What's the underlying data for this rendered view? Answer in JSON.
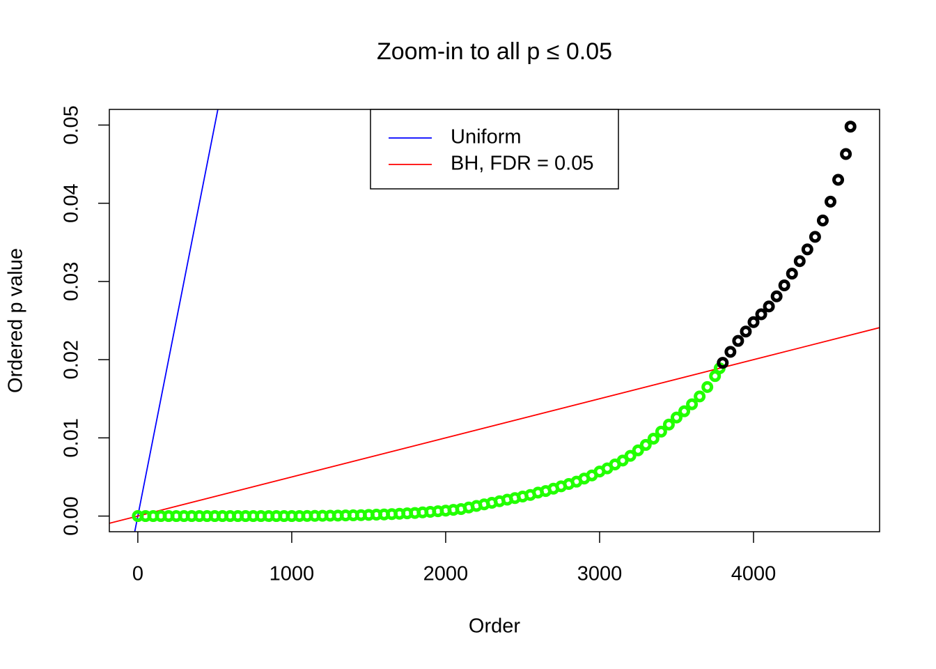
{
  "chart_data": {
    "type": "scatter",
    "title": "Zoom-in to all p ≤ 0.05",
    "x_label": "Order",
    "y_label": "Ordered p value",
    "xlim": [
      -185,
      4819
    ],
    "ylim": [
      -0.002,
      0.052
    ],
    "xticks": [
      0,
      1000,
      2000,
      3000,
      4000
    ],
    "yticks": [
      {
        "value": 0,
        "label": "0.00"
      },
      0.01,
      0.02,
      0.03,
      0.04,
      0.05
    ],
    "series": [
      {
        "color": "#22ff00",
        "x": [
          0,
          50,
          100,
          150,
          200,
          250,
          300,
          350,
          400,
          450,
          500,
          550,
          600,
          650,
          700,
          750,
          800,
          850,
          900,
          950,
          1000,
          1050,
          1100,
          1150,
          1200,
          1250,
          1300,
          1350,
          1400,
          1450,
          1500,
          1550,
          1600,
          1650,
          1700,
          1750,
          1800,
          1850,
          1900,
          1950,
          2000,
          2050,
          2100,
          2150,
          2200,
          2250,
          2300,
          2350,
          2400,
          2450,
          2500,
          2550,
          2600,
          2650,
          2700,
          2750,
          2800,
          2850,
          2900,
          2950,
          3000,
          3050,
          3100,
          3150,
          3200,
          3250,
          3300,
          3350,
          3400,
          3450,
          3500,
          3550,
          3600,
          3650,
          3700,
          3750,
          3780
        ],
        "values": [
          0,
          0,
          0,
          0,
          0,
          0,
          0,
          0,
          0,
          0,
          0,
          0,
          0,
          0,
          0,
          0,
          0,
          0,
          0,
          0,
          0,
          1e-05,
          2e-05,
          3e-05,
          4e-05,
          5e-05,
          6e-05,
          8e-05,
          0.0001,
          0.00012,
          0.00015,
          0.00018,
          0.00021,
          0.00025,
          0.0003,
          0.00035,
          0.0004,
          0.00047,
          0.00054,
          0.00062,
          0.0007,
          0.0008,
          0.0009,
          0.0011,
          0.0013,
          0.0015,
          0.0017,
          0.0019,
          0.0021,
          0.0023,
          0.0025,
          0.0027,
          0.003,
          0.0032,
          0.0035,
          0.0038,
          0.0041,
          0.0044,
          0.0048,
          0.0052,
          0.0057,
          0.0061,
          0.0066,
          0.0071,
          0.0077,
          0.0084,
          0.0091,
          0.0099,
          0.0108,
          0.0117,
          0.0126,
          0.0134,
          0.0143,
          0.0153,
          0.0165,
          0.0179,
          0.0189
        ]
      },
      {
        "color": "#000000",
        "x": [
          3800,
          3850,
          3900,
          3950,
          4000,
          4050,
          4100,
          4150,
          4200,
          4250,
          4300,
          4350,
          4400,
          4450,
          4500,
          4550,
          4600,
          4630
        ],
        "values": [
          0.0196,
          0.021,
          0.0224,
          0.0236,
          0.0248,
          0.0258,
          0.0268,
          0.0281,
          0.0295,
          0.031,
          0.0326,
          0.0341,
          0.0357,
          0.0378,
          0.0402,
          0.043,
          0.0463,
          0.0498
        ]
      }
    ],
    "lines": [
      {
        "name": "Uniform",
        "color": "#0000ff",
        "slope": 0.0001,
        "intercept": 0
      },
      {
        "name": "BH, FDR = 0.05",
        "color": "#ff0000",
        "slope": 5e-06,
        "intercept": 0
      }
    ],
    "legend": "top"
  }
}
